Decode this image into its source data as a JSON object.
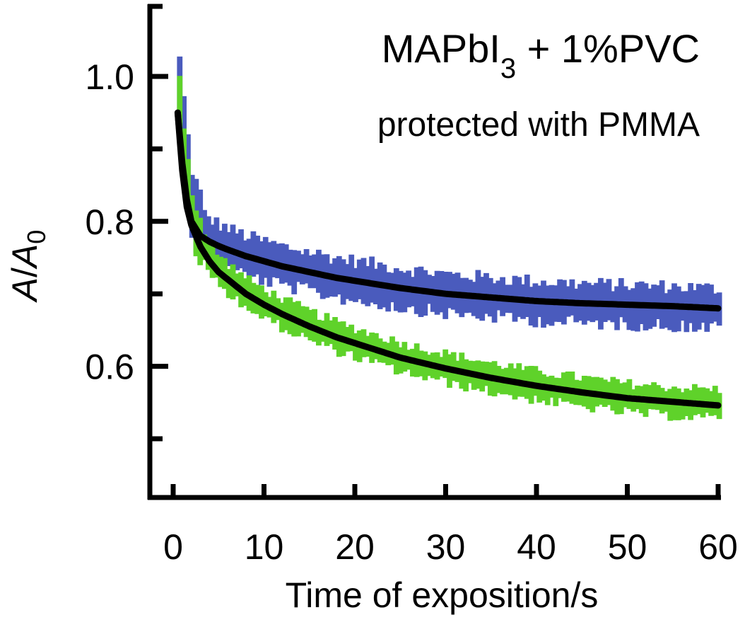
{
  "chart_data": {
    "type": "line",
    "title": "MAPbI3 + 1%PVC",
    "title_parts": {
      "base": "MAPbI",
      "subscript": "3",
      "rest": " + 1%PVC"
    },
    "subtitle": "protected with PMMA",
    "xlabel": "Time of exposition/s",
    "ylabel": "A/A0",
    "ylabel_parts": {
      "italic_a": "A",
      "slash": "/",
      "italic_a0": "A",
      "subscript": "0"
    },
    "xlim": [
      -2.5,
      60
    ],
    "ylim": [
      0.42,
      1.1
    ],
    "x_ticks": [
      0,
      10,
      20,
      30,
      40,
      50,
      60
    ],
    "x_tick_labels": [
      "0",
      "10",
      "20",
      "30",
      "40",
      "50",
      "60"
    ],
    "y_ticks": [
      0.5,
      0.6,
      0.7,
      0.8,
      0.9,
      1.0
    ],
    "y_tick_labels": [
      "",
      "0.6",
      "",
      "0.8",
      "",
      "1.0"
    ],
    "grid": false,
    "legend": "none",
    "series": [
      {
        "name": "blue-data",
        "color": "#4a5bbd",
        "style": "noisy-band",
        "x": [
          0.5,
          1,
          1.5,
          2,
          3,
          4,
          5,
          6,
          8,
          10,
          12,
          15,
          18,
          20,
          25,
          30,
          35,
          40,
          45,
          50,
          55,
          60
        ],
        "y": [
          0.98,
          0.92,
          0.86,
          0.82,
          0.785,
          0.775,
          0.768,
          0.762,
          0.752,
          0.745,
          0.738,
          0.73,
          0.722,
          0.718,
          0.708,
          0.7,
          0.695,
          0.69,
          0.687,
          0.685,
          0.683,
          0.68
        ],
        "band_halfwidth": 0.022
      },
      {
        "name": "green-data",
        "color": "#5fd22a",
        "style": "noisy-band",
        "x": [
          0.5,
          1,
          1.5,
          2,
          3,
          4,
          5,
          6,
          8,
          10,
          12,
          15,
          18,
          20,
          25,
          30,
          35,
          40,
          45,
          50,
          55,
          60
        ],
        "y": [
          0.97,
          0.9,
          0.84,
          0.8,
          0.765,
          0.745,
          0.73,
          0.72,
          0.7,
          0.685,
          0.672,
          0.655,
          0.64,
          0.632,
          0.612,
          0.597,
          0.584,
          0.573,
          0.564,
          0.556,
          0.551,
          0.548
        ],
        "band_halfwidth": 0.016
      },
      {
        "name": "blue-fit",
        "color": "#000000",
        "style": "line",
        "x": [
          0.5,
          1,
          1.5,
          2,
          3,
          4,
          5,
          6,
          8,
          10,
          12,
          15,
          18,
          20,
          25,
          30,
          35,
          40,
          45,
          50,
          55,
          60
        ],
        "y": [
          0.95,
          0.88,
          0.83,
          0.8,
          0.78,
          0.772,
          0.766,
          0.761,
          0.752,
          0.745,
          0.738,
          0.73,
          0.722,
          0.718,
          0.708,
          0.7,
          0.695,
          0.69,
          0.687,
          0.685,
          0.683,
          0.68
        ]
      },
      {
        "name": "green-fit",
        "color": "#000000",
        "style": "line",
        "x": [
          0.5,
          1,
          1.5,
          2,
          3,
          4,
          5,
          6,
          8,
          10,
          12,
          15,
          18,
          20,
          25,
          30,
          35,
          40,
          45,
          50,
          55,
          60
        ],
        "y": [
          0.95,
          0.87,
          0.82,
          0.795,
          0.765,
          0.745,
          0.73,
          0.72,
          0.7,
          0.685,
          0.672,
          0.655,
          0.64,
          0.632,
          0.612,
          0.597,
          0.584,
          0.573,
          0.564,
          0.556,
          0.551,
          0.546
        ]
      }
    ]
  }
}
